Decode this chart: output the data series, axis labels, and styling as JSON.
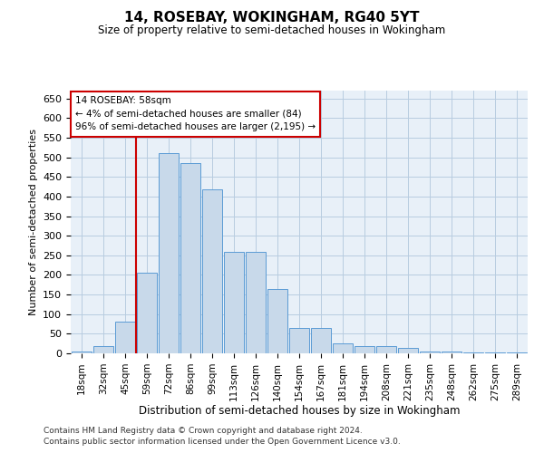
{
  "title": "14, ROSEBAY, WOKINGHAM, RG40 5YT",
  "subtitle": "Size of property relative to semi-detached houses in Wokingham",
  "xlabel": "Distribution of semi-detached houses by size in Wokingham",
  "ylabel": "Number of semi-detached properties",
  "annotation_line1": "14 ROSEBAY: 58sqm",
  "annotation_line2": "← 4% of semi-detached houses are smaller (84)",
  "annotation_line3": "96% of semi-detached houses are larger (2,195) →",
  "categories": [
    "18sqm",
    "32sqm",
    "45sqm",
    "59sqm",
    "72sqm",
    "86sqm",
    "99sqm",
    "113sqm",
    "126sqm",
    "140sqm",
    "154sqm",
    "167sqm",
    "181sqm",
    "194sqm",
    "208sqm",
    "221sqm",
    "235sqm",
    "248sqm",
    "262sqm",
    "275sqm",
    "289sqm"
  ],
  "values": [
    5,
    18,
    80,
    205,
    510,
    485,
    418,
    258,
    258,
    165,
    65,
    65,
    25,
    18,
    18,
    13,
    5,
    5,
    3,
    2,
    3
  ],
  "bar_color": "#c8d9ea",
  "bar_edge_color": "#5b9bd5",
  "vline_x_index": 3,
  "vline_color": "#cc0000",
  "annotation_box_color": "#cc0000",
  "ylim": [
    0,
    670
  ],
  "yticks": [
    0,
    50,
    100,
    150,
    200,
    250,
    300,
    350,
    400,
    450,
    500,
    550,
    600,
    650
  ],
  "background_color": "#ffffff",
  "ax_background_color": "#e8f0f8",
  "grid_color": "#b8cce0",
  "footer_line1": "Contains HM Land Registry data © Crown copyright and database right 2024.",
  "footer_line2": "Contains public sector information licensed under the Open Government Licence v3.0."
}
